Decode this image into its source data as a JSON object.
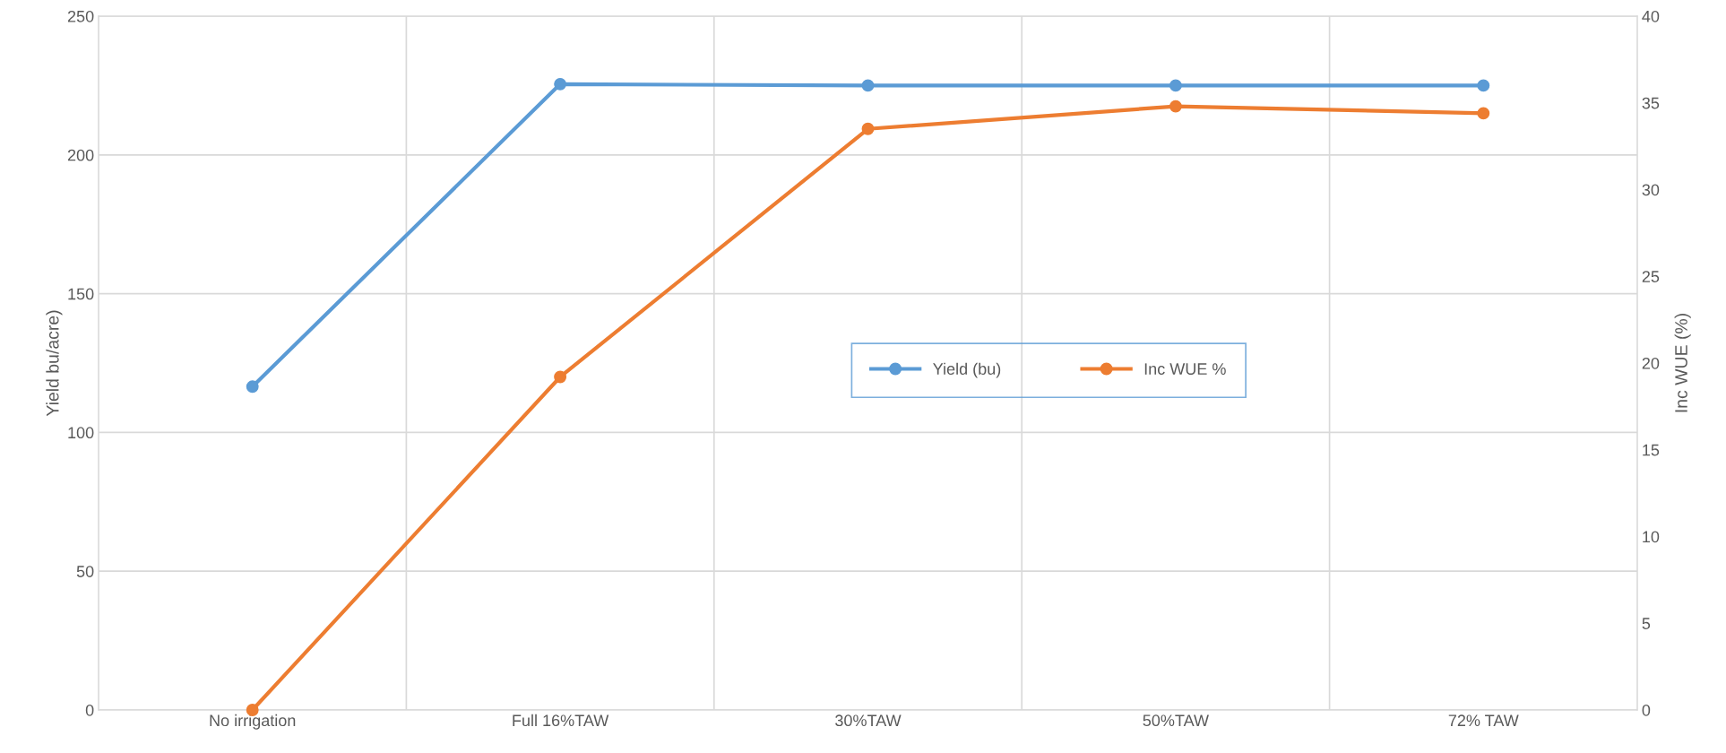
{
  "chart_data": {
    "type": "line",
    "categories": [
      "No irrigation",
      "Full 16%TAW",
      "30%TAW",
      "50%TAW",
      "72% TAW"
    ],
    "series": [
      {
        "name": "Yield (bu)",
        "color": "#5b9bd5",
        "values": [
          116.5,
          225.5,
          225,
          225,
          225
        ]
      },
      {
        "name": "Inc WUE %",
        "color": "#ed7d31",
        "values": [
          0,
          19.2,
          33.5,
          34.8,
          34.4
        ],
        "axis": "y2"
      }
    ],
    "ylabel": "Yield bu/acre)",
    "y2label": "Inc WUE (%)",
    "ylim": [
      0,
      250
    ],
    "yticks": [
      0,
      50,
      100,
      150,
      200,
      250
    ],
    "y2lim": [
      0,
      40
    ],
    "y2ticks": [
      0,
      5,
      10,
      15,
      20,
      25,
      30,
      35,
      40
    ],
    "grid": true,
    "legend": "center",
    "marker": "circle",
    "line_style": "solid"
  }
}
